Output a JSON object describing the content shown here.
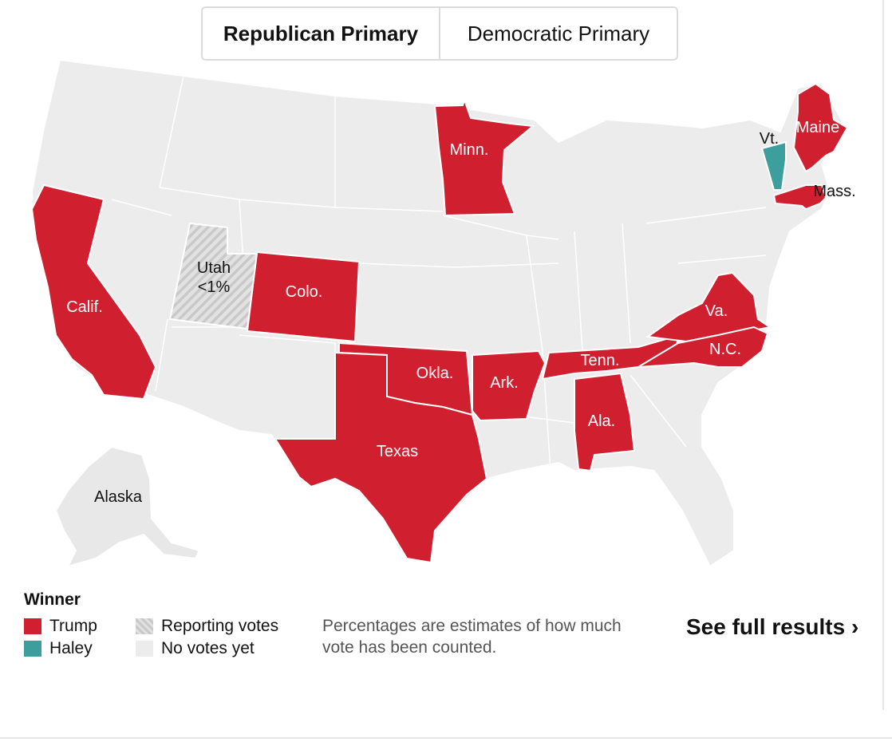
{
  "tabs": [
    {
      "label": "Republican Primary",
      "active": true
    },
    {
      "label": "Democratic Primary",
      "active": false
    }
  ],
  "colors": {
    "trump": "#d0202f",
    "haley": "#3d9e9e",
    "no_votes": "#ececec",
    "reporting": "#d8d8d8",
    "state_border": "#ffffff"
  },
  "map": {
    "states": [
      {
        "abbr": "CA",
        "label": "Calif.",
        "winner": "Trump"
      },
      {
        "abbr": "CO",
        "label": "Colo.",
        "winner": "Trump"
      },
      {
        "abbr": "MN",
        "label": "Minn.",
        "winner": "Trump"
      },
      {
        "abbr": "OK",
        "label": "Okla.",
        "winner": "Trump"
      },
      {
        "abbr": "TX",
        "label": "Texas",
        "winner": "Trump"
      },
      {
        "abbr": "AR",
        "label": "Ark.",
        "winner": "Trump"
      },
      {
        "abbr": "TN",
        "label": "Tenn.",
        "winner": "Trump"
      },
      {
        "abbr": "AL",
        "label": "Ala.",
        "winner": "Trump"
      },
      {
        "abbr": "VA",
        "label": "Va.",
        "winner": "Trump"
      },
      {
        "abbr": "NC",
        "label": "N.C.",
        "winner": "Trump"
      },
      {
        "abbr": "ME",
        "label": "Maine",
        "winner": "Trump"
      },
      {
        "abbr": "MA",
        "label": "Mass.",
        "winner": "Trump"
      },
      {
        "abbr": "VT",
        "label": "Vt.",
        "winner": "Haley"
      },
      {
        "abbr": "UT",
        "label": "Utah",
        "winner": "Reporting votes",
        "pct_reported": "<1%"
      },
      {
        "abbr": "AK",
        "label": "Alaska",
        "winner": "No votes yet"
      }
    ]
  },
  "legend": {
    "title": "Winner",
    "items": [
      {
        "label": "Trump",
        "swatch": "trump"
      },
      {
        "label": "Haley",
        "swatch": "haley"
      },
      {
        "label": "Reporting votes",
        "swatch": "reporting"
      },
      {
        "label": "No votes yet",
        "swatch": "no_votes"
      }
    ]
  },
  "note": "Percentages are estimates of how much vote has been counted.",
  "full_results_label": "See full results ›"
}
